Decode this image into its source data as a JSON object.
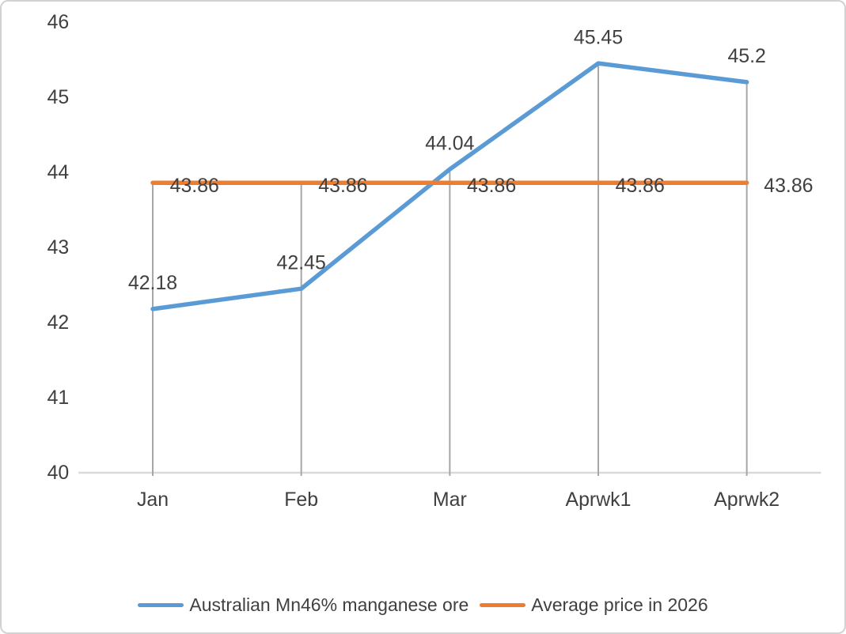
{
  "chart_data": {
    "type": "line",
    "title": "",
    "xlabel": "",
    "ylabel": "",
    "categories": [
      "Jan",
      "Feb",
      "Mar",
      "Aprwk1",
      "Aprwk2"
    ],
    "series": [
      {
        "id": "manganese-ore",
        "name": "Australian Mn46% manganese ore",
        "color": "#5B9BD5",
        "values": [
          42.18,
          42.45,
          44.04,
          45.45,
          45.2
        ],
        "labels": [
          "42.18",
          "42.45",
          "44.04",
          "45.45",
          "45.2"
        ],
        "label_position": "above"
      },
      {
        "id": "average-price",
        "name": "Average price in 2026",
        "color": "#ED7D31",
        "values": [
          43.86,
          43.86,
          43.86,
          43.86,
          43.86
        ],
        "labels": [
          "43.86",
          "43.86",
          "43.86",
          "43.86",
          "43.86"
        ],
        "label_position": "right"
      }
    ],
    "ylim": [
      40,
      46
    ],
    "yticks": [
      40,
      41,
      42,
      43,
      44,
      45,
      46
    ],
    "ytick_labels": [
      "40",
      "41",
      "42",
      "43",
      "44",
      "45",
      "46"
    ],
    "grid": "off",
    "drop_lines": true,
    "legend_position": "bottom",
    "colors": {
      "axis_line": "#d9d9d9",
      "drop_line": "#a6a6a6",
      "text": "#404040"
    }
  }
}
